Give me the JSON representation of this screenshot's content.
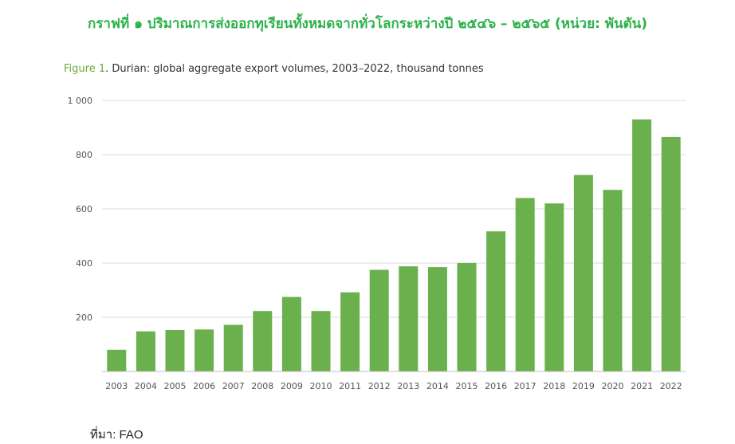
{
  "thai_title": "กราฟที่ ๑ ปริมาณการส่งออกทุเรียนทั้งหมดจากทั่วโลกระหว่างปี ๒๕๔๖ – ๒๕๖๕ (หน่วย: พันตัน)",
  "source_text": "ที่มา: FAO",
  "colors": {
    "bar": "#6ab04c",
    "title": "#2db24a",
    "figure_label": "#6aaa3a",
    "grid": "#d9d9d9"
  },
  "chart_data": {
    "type": "bar",
    "figure_label": "Figure 1",
    "title": ". Durian: global aggregate export volumes, 2003–2022, thousand tonnes",
    "xlabel": "",
    "ylabel": "",
    "categories": [
      "2003",
      "2004",
      "2005",
      "2006",
      "2007",
      "2008",
      "2009",
      "2010",
      "2011",
      "2012",
      "2013",
      "2014",
      "2015",
      "2016",
      "2017",
      "2018",
      "2019",
      "2020",
      "2021",
      "2022"
    ],
    "values": [
      80,
      148,
      153,
      155,
      172,
      223,
      275,
      223,
      292,
      375,
      388,
      385,
      400,
      517,
      640,
      620,
      725,
      670,
      930,
      865
    ],
    "ylim": [
      0,
      1000
    ],
    "y_ticks": [
      200,
      400,
      600,
      800,
      1000
    ],
    "y_tick_labels": [
      "200",
      "400",
      "600",
      "800",
      "1 000"
    ],
    "grid": true,
    "legend": "none"
  }
}
